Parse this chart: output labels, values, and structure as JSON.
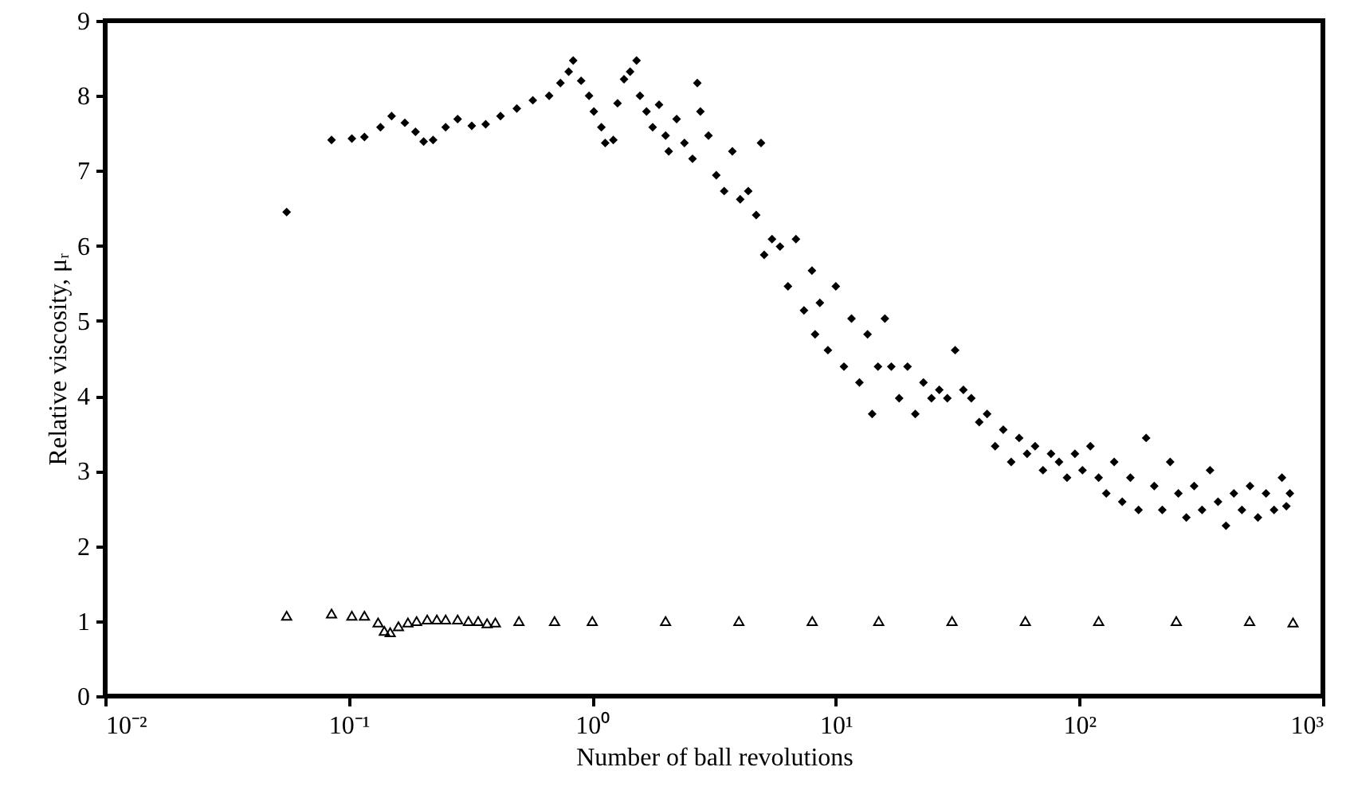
{
  "chart_data": {
    "type": "scatter",
    "xlabel": "Number of ball revolutions",
    "ylabel": "Relative viscosity, μᵣ",
    "log": "x",
    "grid": false,
    "xlim": [
      0.01,
      1000
    ],
    "xticks": [
      {
        "value": 0.01,
        "label": "10⁻²"
      },
      {
        "value": 0.1,
        "label": "10⁻¹"
      },
      {
        "value": 1,
        "label": "10⁰"
      },
      {
        "value": 10,
        "label": "10¹"
      },
      {
        "value": 100,
        "label": "10²"
      },
      {
        "value": 1000,
        "label": "10³"
      }
    ],
    "ylim": [
      0,
      9
    ],
    "yticks": [
      0,
      1,
      2,
      3,
      4,
      5,
      6,
      7,
      8,
      9
    ],
    "series": [
      {
        "color": "#000000",
        "marker": "diamond",
        "x": [
          0.0556,
          0.085,
          0.103,
          0.116,
          0.135,
          0.15,
          0.17,
          0.188,
          0.203,
          0.222,
          0.25,
          0.28,
          0.32,
          0.365,
          0.42,
          0.49,
          0.57,
          0.665,
          0.74,
          0.8,
          0.835,
          0.9,
          0.97,
          1.015,
          1.09,
          1.13,
          1.22,
          1.27,
          1.35,
          1.43,
          1.52,
          1.57,
          1.67,
          1.77,
          1.88,
          2.0,
          2.06,
          2.22,
          2.39,
          2.58,
          2.7,
          2.78,
          3.0,
          3.23,
          3.48,
          3.76,
          4.05,
          4.37,
          4.71,
          4.93,
          5.08,
          5.47,
          5.9,
          6.36,
          6.86,
          7.4,
          7.98,
          8.22,
          8.6,
          9.28,
          10.0,
          10.8,
          11.6,
          12.5,
          13.5,
          14.1,
          14.9,
          15.9,
          16.9,
          18.2,
          19.7,
          21.2,
          22.9,
          24.7,
          26.6,
          28.7,
          30.9,
          33.4,
          36.0,
          38.8,
          41.8,
          45.1,
          48.7,
          52.5,
          56.6,
          61.0,
          65.8,
          70.9,
          76.5,
          82.5,
          89.0,
          95.9,
          103,
          111,
          120,
          129,
          139,
          150,
          162,
          175,
          188,
          203,
          219,
          236,
          255,
          275,
          296,
          319,
          344,
          371,
          400,
          431,
          465,
          502,
          541,
          584,
          630,
          679,
          708,
          732
        ],
        "values": [
          6.45,
          7.41,
          7.43,
          7.45,
          7.58,
          7.73,
          7.64,
          7.52,
          7.39,
          7.41,
          7.58,
          7.69,
          7.6,
          7.62,
          7.73,
          7.83,
          7.94,
          8.0,
          8.17,
          8.32,
          8.47,
          8.2,
          8.0,
          7.79,
          7.58,
          7.37,
          7.41,
          7.9,
          8.22,
          8.32,
          8.47,
          8.0,
          7.79,
          7.58,
          7.88,
          7.47,
          7.26,
          7.69,
          7.37,
          7.16,
          8.17,
          7.79,
          7.47,
          6.94,
          6.73,
          7.26,
          6.62,
          6.73,
          6.41,
          7.37,
          5.88,
          6.09,
          5.99,
          5.46,
          6.09,
          5.14,
          5.67,
          4.82,
          5.24,
          4.61,
          5.46,
          4.39,
          5.03,
          4.18,
          4.82,
          3.76,
          4.39,
          5.03,
          4.39,
          3.97,
          4.39,
          3.76,
          4.18,
          3.97,
          4.08,
          3.97,
          4.61,
          4.08,
          3.97,
          3.65,
          3.76,
          3.33,
          3.55,
          3.12,
          3.44,
          3.23,
          3.33,
          3.01,
          3.23,
          3.12,
          2.91,
          3.23,
          3.01,
          3.33,
          2.91,
          2.7,
          3.12,
          2.59,
          2.91,
          2.48,
          3.44,
          2.8,
          2.48,
          3.12,
          2.7,
          2.38,
          2.8,
          2.48,
          3.01,
          2.59,
          2.27,
          2.7,
          2.48,
          2.8,
          2.38,
          2.7,
          2.48,
          2.91,
          2.53,
          2.7
        ]
      },
      {
        "color": "#000000",
        "marker": "triangle",
        "x": [
          0.0556,
          0.085,
          0.103,
          0.116,
          0.132,
          0.14,
          0.148,
          0.16,
          0.175,
          0.19,
          0.21,
          0.23,
          0.25,
          0.28,
          0.31,
          0.34,
          0.37,
          0.4,
          0.5,
          0.7,
          1,
          2,
          4,
          8,
          15,
          30,
          60,
          120,
          250,
          500,
          754
        ],
        "values": [
          1.07,
          1.1,
          1.07,
          1.07,
          0.98,
          0.87,
          0.85,
          0.93,
          0.98,
          1.0,
          1.02,
          1.02,
          1.02,
          1.02,
          1.0,
          1.0,
          0.97,
          0.98,
          1.0,
          1.0,
          1.0,
          1.0,
          1.0,
          1.0,
          1.0,
          1.0,
          1.0,
          1.0,
          1.0,
          1.0,
          0.98
        ]
      }
    ]
  }
}
